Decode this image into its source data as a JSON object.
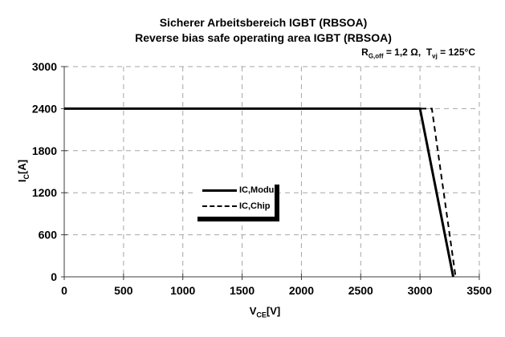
{
  "chart": {
    "title": "Sicherer Arbeitsbereich IGBT (RBSOA)",
    "subtitle": "Reverse bias safe operating area IGBT (RBSOA)"
  },
  "annotation": {
    "seg1": "R",
    "sub1": "G,off",
    "seg2": " = 1,2 Ω,  T",
    "sub2": "vj",
    "seg3": " = 125°C"
  },
  "axes": {
    "ylabel": {
      "main": "I",
      "sub": "C",
      "unit": "[A]"
    },
    "xlabel": {
      "main": "V",
      "sub": "CE",
      "unit": "[V]"
    }
  },
  "colors": {
    "background": "#ffffff",
    "grid": "#a6a6a6",
    "axis": "#3c3c3c",
    "line": "#000000"
  },
  "chart_data": {
    "type": "line",
    "title": "Sicherer Arbeitsbereich IGBT (RBSOA)",
    "subtitle": "Reverse bias safe operating area IGBT (RBSOA)",
    "annotation": "R_G,off = 1,2 Ω, T_vj = 125°C",
    "xlabel": "V_CE [V]",
    "ylabel": "I_C [A]",
    "xlim": [
      0,
      3500
    ],
    "ylim": [
      0,
      3000
    ],
    "xticks": [
      0,
      500,
      1000,
      1500,
      2000,
      2500,
      3000,
      3500
    ],
    "yticks": [
      0,
      600,
      1200,
      1800,
      2400,
      3000
    ],
    "grid": "dashed-gray-both-axes",
    "legend_position": "inside-center-left",
    "series": [
      {
        "name": "IC,Modul",
        "line_style": "solid",
        "color": "#000000",
        "points": [
          [
            0,
            2400
          ],
          [
            3000,
            2400
          ],
          [
            3280,
            0
          ]
        ]
      },
      {
        "name": "IC,Chip",
        "line_style": "dashed",
        "color": "#000000",
        "points": [
          [
            0,
            2400
          ],
          [
            3100,
            2400
          ],
          [
            3300,
            0
          ]
        ]
      }
    ]
  }
}
